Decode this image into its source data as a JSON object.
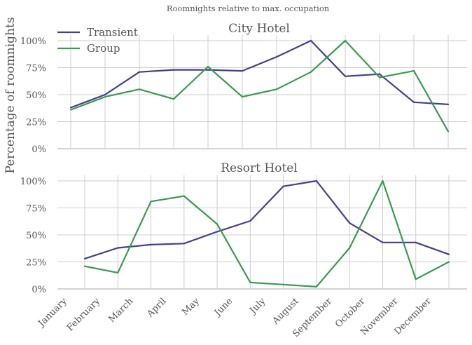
{
  "suptitle": "Roomnights relative to max. occupation",
  "ylabel": "Percentage of roomnights",
  "months": [
    "January",
    "February",
    "March",
    "April",
    "May",
    "June",
    "July",
    "August",
    "September",
    "October",
    "November",
    "December"
  ],
  "yticks": [
    "0%",
    "25%",
    "50%",
    "75%",
    "100%"
  ],
  "colors": {
    "transient": "#453f8c",
    "group": "#3a9a4f"
  },
  "legend": {
    "placement": "top-left",
    "items": [
      "Transient",
      "Group"
    ]
  },
  "chart_data": [
    {
      "type": "line",
      "title": "City Hotel",
      "ylim": [
        0,
        100
      ],
      "grid": true,
      "x": [
        "January",
        "February",
        "March",
        "April",
        "May",
        "June",
        "July",
        "August",
        "September",
        "October",
        "November",
        "December"
      ],
      "series": [
        {
          "name": "Transient",
          "color": "#453f8c",
          "values": [
            38,
            50,
            71,
            73,
            73,
            72,
            85,
            100,
            67,
            69,
            43,
            41
          ]
        },
        {
          "name": "Group",
          "color": "#3a9a4f",
          "values": [
            36,
            48,
            55,
            46,
            76,
            48,
            55,
            71,
            100,
            66,
            72,
            16
          ]
        }
      ]
    },
    {
      "type": "line",
      "title": "Resort Hotel",
      "ylim": [
        0,
        100
      ],
      "grid": true,
      "x": [
        "January",
        "February",
        "March",
        "April",
        "May",
        "June",
        "July",
        "August",
        "September",
        "October",
        "November",
        "December"
      ],
      "series": [
        {
          "name": "Transient",
          "color": "#453f8c",
          "values": [
            28,
            38,
            41,
            42,
            53,
            63,
            95,
            100,
            61,
            43,
            43,
            32
          ]
        },
        {
          "name": "Group",
          "color": "#3a9a4f",
          "values": [
            21,
            15,
            81,
            86,
            60,
            6,
            4,
            2,
            38,
            100,
            9,
            25
          ]
        }
      ]
    }
  ]
}
